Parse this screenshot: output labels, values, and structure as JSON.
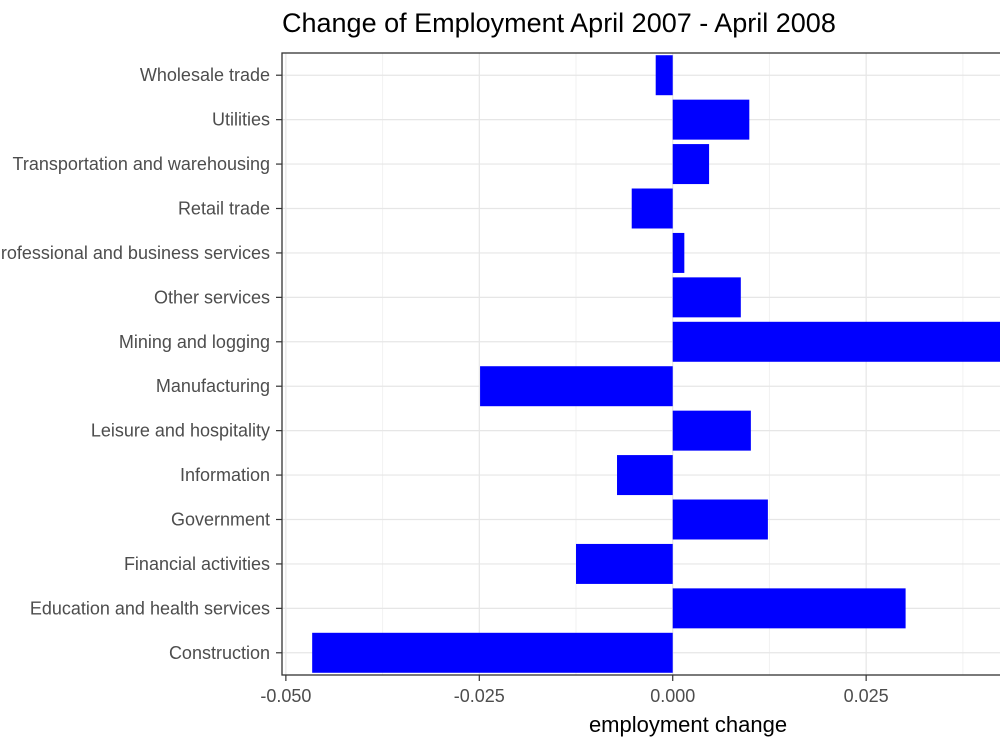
{
  "chart_data": {
    "type": "bar",
    "orientation": "horizontal",
    "title": "Change of Employment April 2007 - April 2008",
    "xlabel": "employment change",
    "ylabel": "",
    "xlim": [
      -0.0505,
      0.0423
    ],
    "x_ticks": [
      -0.05,
      -0.025,
      0.0,
      0.025
    ],
    "x_tick_labels": [
      "-0.050",
      "-0.025",
      "0.000",
      "0.025"
    ],
    "grid": true,
    "bar_color": "#0000ff",
    "categories": [
      "Construction",
      "Education and health services",
      "Financial activities",
      "Government",
      "Information",
      "Leisure and hospitality",
      "Manufacturing",
      "Mining and logging",
      "Other services",
      "Professional and business services",
      "Retail trade",
      "Transportation and warehousing",
      "Utilities",
      "Wholesale trade"
    ],
    "values": [
      -0.0466,
      0.0301,
      -0.0125,
      0.0123,
      -0.0072,
      0.0101,
      -0.0249,
      0.047,
      0.0088,
      0.0015,
      -0.0053,
      0.0047,
      0.0099,
      -0.0022
    ]
  }
}
